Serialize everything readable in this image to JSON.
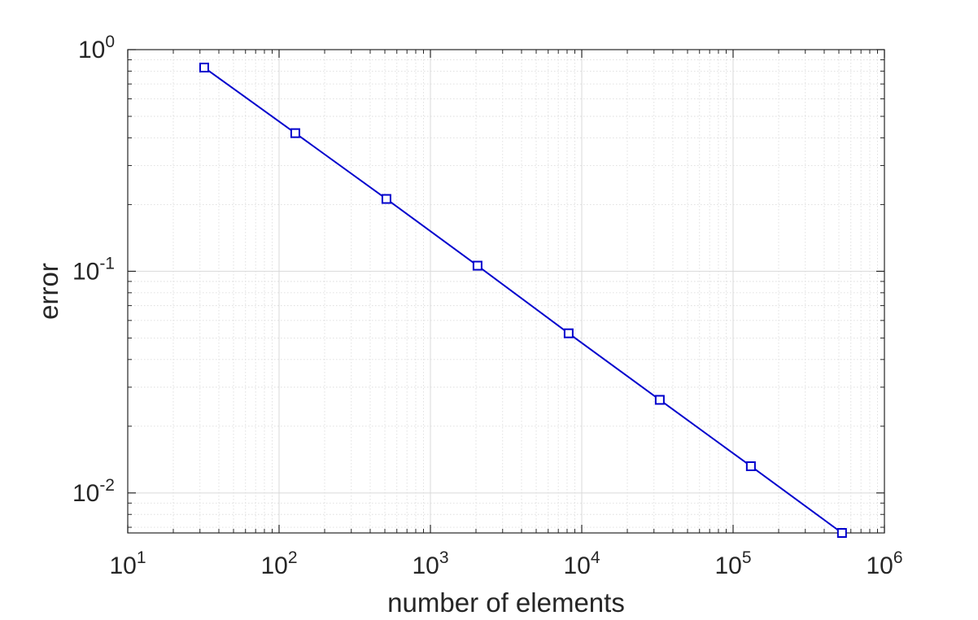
{
  "chart_data": {
    "type": "line",
    "title": "",
    "xlabel": "number of elements",
    "ylabel": "error",
    "x_scale": "log",
    "y_scale": "log",
    "xlim": [
      10,
      1000000
    ],
    "ylim": [
      0.0066,
      1
    ],
    "grid": true,
    "minor_grid": true,
    "legend": "none",
    "x_ticks": [
      {
        "base": "10",
        "exp": "1",
        "value": 10
      },
      {
        "base": "10",
        "exp": "2",
        "value": 100
      },
      {
        "base": "10",
        "exp": "3",
        "value": 1000
      },
      {
        "base": "10",
        "exp": "4",
        "value": 10000
      },
      {
        "base": "10",
        "exp": "5",
        "value": 100000
      },
      {
        "base": "10",
        "exp": "6",
        "value": 1000000
      }
    ],
    "y_ticks": [
      {
        "base": "10",
        "exp": "0",
        "value": 1
      },
      {
        "base": "10",
        "exp": "-1",
        "value": 0.1
      },
      {
        "base": "10",
        "exp": "-2",
        "value": 0.01
      }
    ],
    "series": [
      {
        "color": "#0000cd",
        "marker": "square",
        "x": [
          32,
          128,
          512,
          2048,
          8192,
          32768,
          131072,
          524288
        ],
        "y": [
          0.83,
          0.42,
          0.212,
          0.106,
          0.0525,
          0.0263,
          0.0132,
          0.0066
        ]
      }
    ]
  }
}
